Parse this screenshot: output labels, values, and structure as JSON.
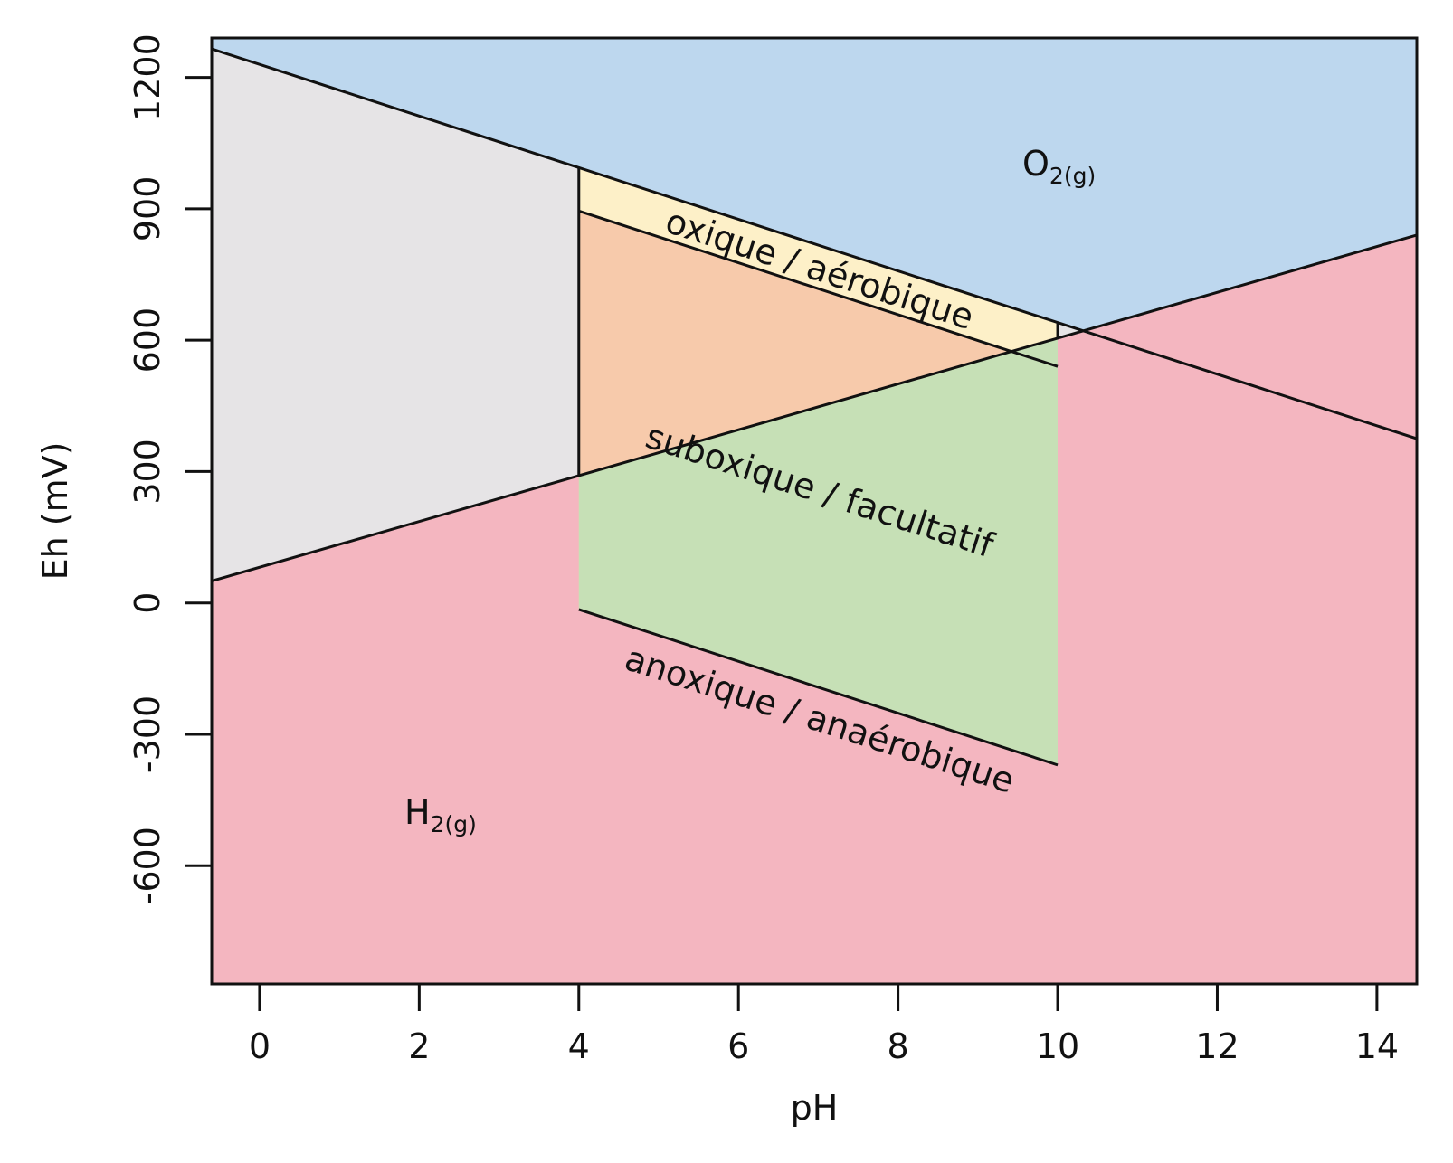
{
  "chart_data": {
    "type": "area",
    "xlabel": "pH",
    "ylabel": "Eh (mV)",
    "xlim": [
      -0.6,
      14.5
    ],
    "ylim": [
      -870,
      1290
    ],
    "x_ticks": [
      0,
      2,
      4,
      6,
      8,
      10,
      12,
      14
    ],
    "y_ticks": [
      -600,
      -300,
      0,
      300,
      600,
      900,
      1200
    ],
    "grid": false,
    "legend": "none",
    "boundaries": {
      "o2_water_line": [
        [
          -0.6,
          1265
        ],
        [
          14.5,
          375
        ]
      ],
      "h2_water_line": [
        [
          -0.6,
          50
        ],
        [
          14.5,
          840
        ]
      ],
      "upper_box_line": [
        [
          4,
          895
        ],
        [
          10,
          540
        ]
      ],
      "lower_box_line": [
        [
          4,
          -15
        ],
        [
          10,
          -370
        ]
      ],
      "box_ph_range": [
        4,
        10
      ]
    },
    "regions": [
      {
        "id": "o2",
        "name": "O",
        "subscript": "2(g)",
        "color": "#bdd7ee"
      },
      {
        "id": "water",
        "name": "",
        "color": "#e6e4e6"
      },
      {
        "id": "h2",
        "name": "H",
        "subscript": "2(g)",
        "color": "#f4b6c0"
      },
      {
        "id": "oxic",
        "name": "oxique / aérobique",
        "color": "#fdf0c8"
      },
      {
        "id": "suboxic",
        "name": "suboxique / facultatif",
        "color": "#f7caab"
      },
      {
        "id": "anoxic",
        "name": "anoxique / anaérobique",
        "color": "#c6e0b6"
      }
    ],
    "line_color": "#111111"
  }
}
